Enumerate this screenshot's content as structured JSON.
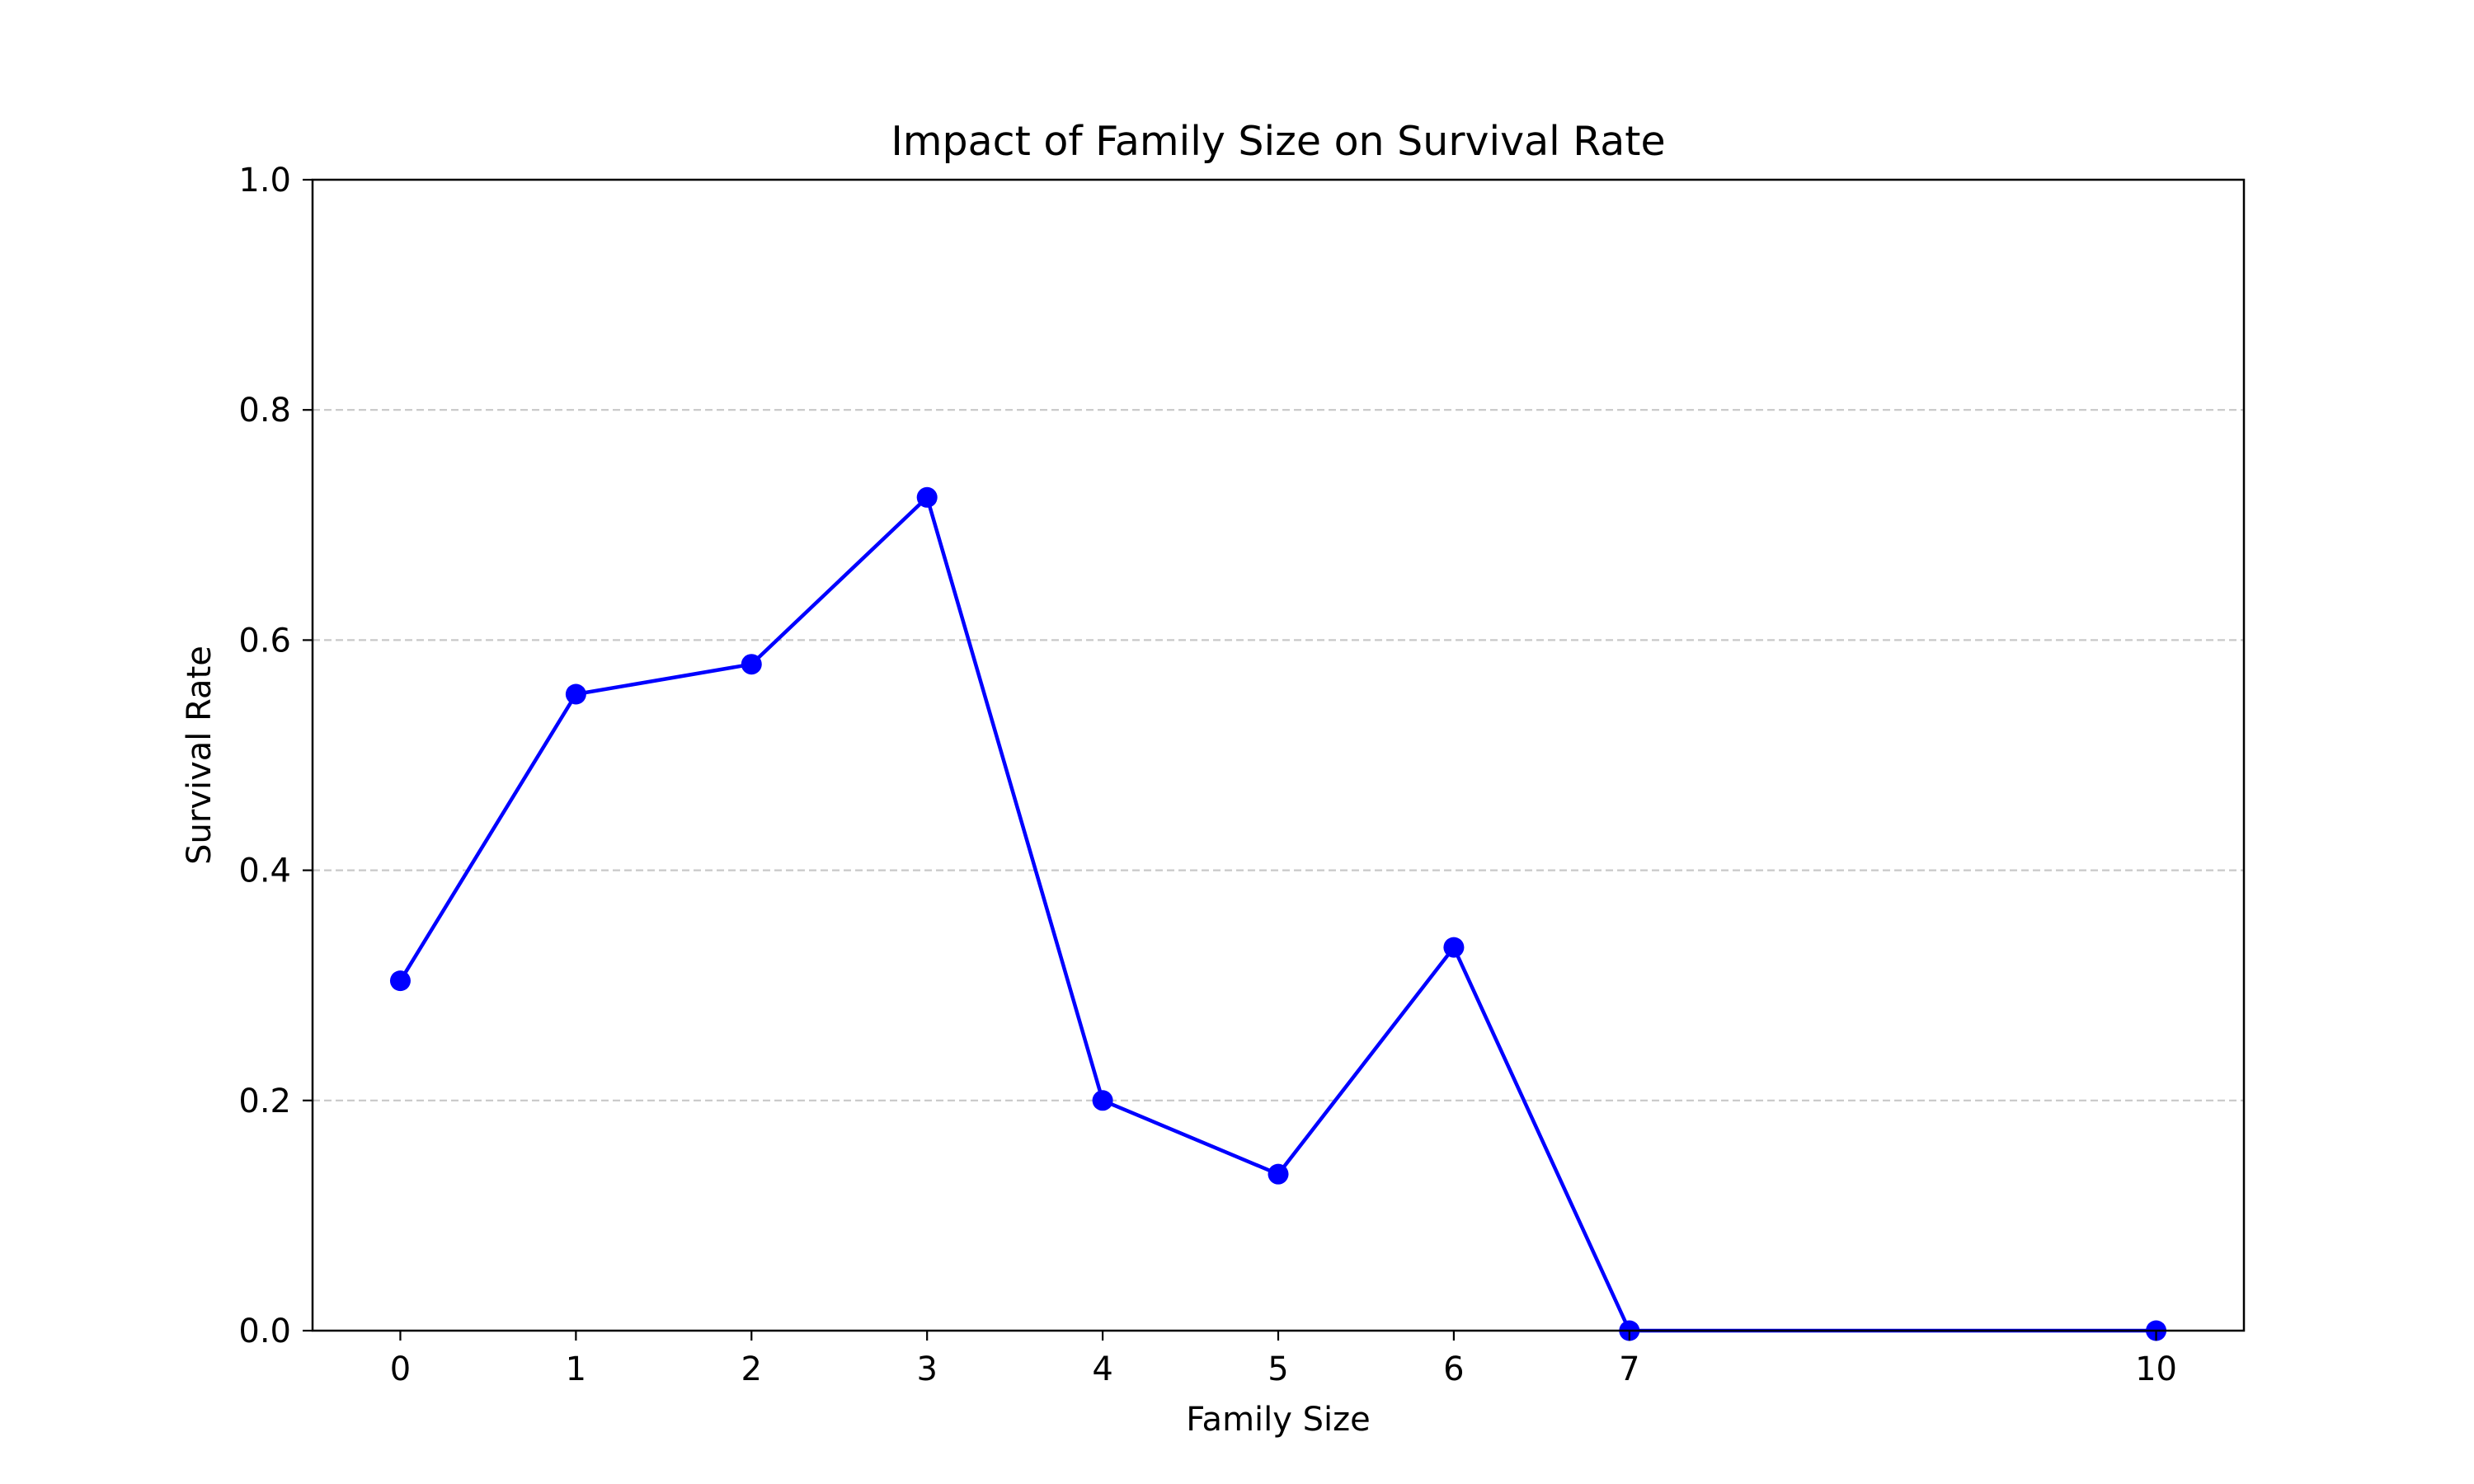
{
  "chart_data": {
    "type": "line",
    "title": "Impact of Family Size on Survival Rate",
    "xlabel": "Family Size",
    "ylabel": "Survival Rate",
    "x_ticks": [
      0,
      1,
      2,
      3,
      4,
      5,
      6,
      7,
      10
    ],
    "y_ticks": [
      "0.0",
      "0.2",
      "0.4",
      "0.6",
      "0.8",
      "1.0"
    ],
    "xlim": [
      -0.5,
      10.5
    ],
    "ylim": [
      0,
      1
    ],
    "grid": "y-axis dashed",
    "series": [
      {
        "color": "#0000ff",
        "marker": "circle",
        "x": [
          0,
          1,
          2,
          3,
          4,
          5,
          6,
          7,
          10
        ],
        "y": [
          0.304,
          0.553,
          0.579,
          0.724,
          0.2,
          0.136,
          0.333,
          0.0,
          0.0
        ]
      }
    ]
  },
  "colors": {
    "line": "#0000ff",
    "grid": "#c8c8c8",
    "axes": "#000000"
  }
}
